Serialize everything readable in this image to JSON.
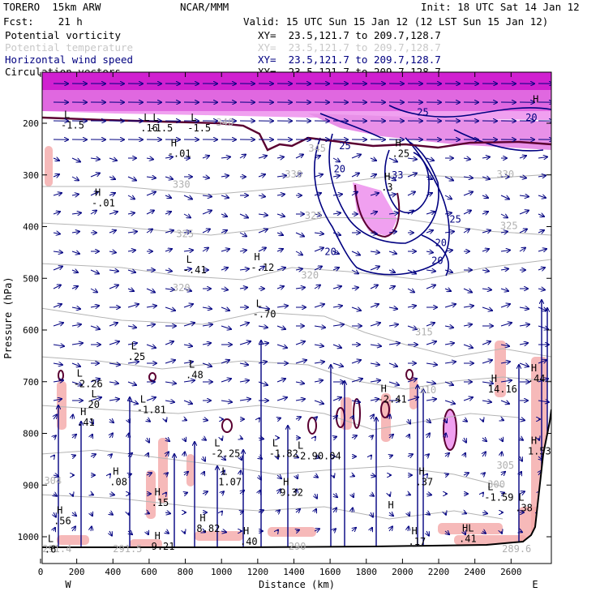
{
  "header": {
    "model": "TORERO  15km ARW",
    "center": "NCAR/MMM",
    "init": "Init: 18 UTC Sat 14 Jan 12",
    "fcst": "Fcst:    21 h",
    "valid": "Valid: 15 UTC Sun 15 Jan 12 (12 LST Sun 15 Jan 12)",
    "xy": "XY=  23.5,121.7 to 209.7,128.7"
  },
  "legend": [
    {
      "label": "Potential vorticity",
      "color": "#000000"
    },
    {
      "label": "Potential temperature",
      "color": "#c8c8c8"
    },
    {
      "label": "Horizontal wind speed",
      "color": "#000080"
    },
    {
      "label": "Circulation vectors",
      "color": "#000000"
    }
  ],
  "colors": {
    "pv_high": "#d020d0",
    "pv_mid": "#f0a0f0",
    "pv_low": "#f4a8a8",
    "pv_contour": "#5a0030",
    "theta": "#b4b4b4",
    "wind_contour": "#000080",
    "vectors": "#000080",
    "terrain": "#000000"
  },
  "chart_data": {
    "type": "cross-section",
    "xlabel": "Distance (km)",
    "ylabel": "Pressure (hPa)",
    "xlim": [
      0,
      2800
    ],
    "ylim": [
      1050,
      100
    ],
    "x_ticks": [
      0,
      200,
      400,
      600,
      800,
      1000,
      1200,
      1400,
      1600,
      1800,
      2000,
      2200,
      2400,
      2600
    ],
    "y_ticks": [
      200,
      300,
      400,
      500,
      600,
      700,
      800,
      900,
      1000
    ],
    "x_end_labels": {
      "left": "W",
      "right": "E"
    },
    "theta_labels": [
      {
        "text": "340",
        "x": 970,
        "p": 205
      },
      {
        "text": "345",
        "x": 1480,
        "p": 255
      },
      {
        "text": "330",
        "x": 730,
        "p": 325
      },
      {
        "text": "330",
        "x": 1350,
        "p": 305
      },
      {
        "text": "325",
        "x": 750,
        "p": 420
      },
      {
        "text": "325",
        "x": 1460,
        "p": 385
      },
      {
        "text": "320",
        "x": 730,
        "p": 525
      },
      {
        "text": "320",
        "x": 1440,
        "p": 500
      },
      {
        "text": "315",
        "x": 2070,
        "p": 610
      },
      {
        "text": "305",
        "x": 2520,
        "p": 868
      },
      {
        "text": "300",
        "x": 2470,
        "p": 905
      },
      {
        "text": "325",
        "x": 2540,
        "p": 405
      },
      {
        "text": "330",
        "x": 2520,
        "p": 305
      },
      {
        "text": "310",
        "x": 2090,
        "p": 722
      },
      {
        "text": "304",
        "x": 20,
        "p": 898
      },
      {
        "text": "291.4",
        "x": 10,
        "p": 1030
      },
      {
        "text": "291.5",
        "x": 400,
        "p": 1030
      },
      {
        "text": "289.6",
        "x": 2550,
        "p": 1030
      },
      {
        "text": "290",
        "x": 1370,
        "p": 1025
      }
    ],
    "wind_labels": [
      {
        "text": "25",
        "x": 1650,
        "p": 250
      },
      {
        "text": "20",
        "x": 1620,
        "p": 295
      },
      {
        "text": "25",
        "x": 2080,
        "p": 185
      },
      {
        "text": "20",
        "x": 2680,
        "p": 195
      },
      {
        "text": "20",
        "x": 1570,
        "p": 455
      },
      {
        "text": "20",
        "x": 2180,
        "p": 438
      },
      {
        "text": "25",
        "x": 2260,
        "p": 392
      },
      {
        "text": "20",
        "x": 2160,
        "p": 472
      },
      {
        "text": "33",
        "x": 1940,
        "p": 307
      }
    ],
    "extrema": [
      {
        "text": "H",
        "value": "-.01",
        "x": 300,
        "p": 340
      },
      {
        "text": "H",
        "value": "-.01",
        "x": 720,
        "p": 245
      },
      {
        "text": "L",
        "value": ".16",
        "x": 570,
        "p": 195
      },
      {
        "text": "L",
        "value": "-.41",
        "x": 805,
        "p": 470
      },
      {
        "text": "H",
        "value": "-.12",
        "x": 1180,
        "p": 465
      },
      {
        "text": "L",
        "value": "-.70",
        "x": 1190,
        "p": 555
      },
      {
        "text": "L",
        "value": ".25",
        "x": 500,
        "p": 638
      },
      {
        "text": "L",
        "value": ".48",
        "x": 820,
        "p": 673
      },
      {
        "text": "L",
        "value": "-1.81",
        "x": 550,
        "p": 740
      },
      {
        "text": "L",
        "value": "-2.25",
        "x": 960,
        "p": 825
      },
      {
        "text": "L",
        "value": "1.07",
        "x": 1000,
        "p": 880
      },
      {
        "text": "L",
        "value": "-1.82",
        "x": 1280,
        "p": 825
      },
      {
        "text": "L",
        "value": "-2.90.04",
        "x": 1420,
        "p": 830
      },
      {
        "text": "L",
        "value": "-2.26",
        "x": 200,
        "p": 690
      },
      {
        "text": "L",
        "value": "20",
        "x": 280,
        "p": 730
      },
      {
        "text": "H",
        "value": ".41",
        "x": 220,
        "p": 765
      },
      {
        "text": "H",
        "value": ".08",
        "x": 400,
        "p": 880
      },
      {
        "text": "H",
        "value": ".15",
        "x": 630,
        "p": 920
      },
      {
        "text": "H",
        "value": ".56",
        "x": 90,
        "p": 955
      },
      {
        "text": "H",
        "value": "9.21",
        "x": 630,
        "p": 1005
      },
      {
        "text": "H",
        "value": "8.82",
        "x": 880,
        "p": 970
      },
      {
        "text": "H",
        "value": "9.32",
        "x": 1340,
        "p": 900
      },
      {
        "text": "H",
        "value": ".40",
        "x": 1120,
        "p": 995
      },
      {
        "text": "H",
        "value": "-2.41",
        "x": 1880,
        "p": 720
      },
      {
        "text": "H",
        "value": ".37",
        "x": 2090,
        "p": 880
      },
      {
        "text": "H",
        "value": ".17",
        "x": 2050,
        "p": 995
      },
      {
        "text": "HL",
        "value": ".41",
        "x": 2330,
        "p": 990
      },
      {
        "text": "L",
        "value": "-1.59",
        "x": 2470,
        "p": 910
      },
      {
        "text": "H",
        "value": "14.16",
        "x": 2490,
        "p": 700
      },
      {
        "text": "H",
        "value": ".44",
        "x": 2710,
        "p": 680
      },
      {
        "text": "H",
        "value": "1.53",
        "x": 2710,
        "p": 820
      },
      {
        "text": "L",
        "value": ".38",
        "x": 2640,
        "p": 930
      },
      {
        "text": "L",
        "value": "-1.5",
        "x": 130,
        "p": 190
      },
      {
        "text": "L",
        "value": "-1.5",
        "x": 620,
        "p": 195
      },
      {
        "text": "L",
        "value": "-1.5",
        "x": 830,
        "p": 195
      },
      {
        "text": "H",
        "value": ".3",
        "x": 1900,
        "p": 310
      },
      {
        "text": "H",
        "value": "",
        "x": 2720,
        "p": 160
      },
      {
        "text": "H",
        "value": "",
        "x": 1920,
        "p": 945
      },
      {
        "text": "L",
        "value": ".6",
        "x": 40,
        "p": 1010
      },
      {
        "text": "H",
        "value": ".25",
        "x": 1960,
        "p": 245
      }
    ]
  }
}
